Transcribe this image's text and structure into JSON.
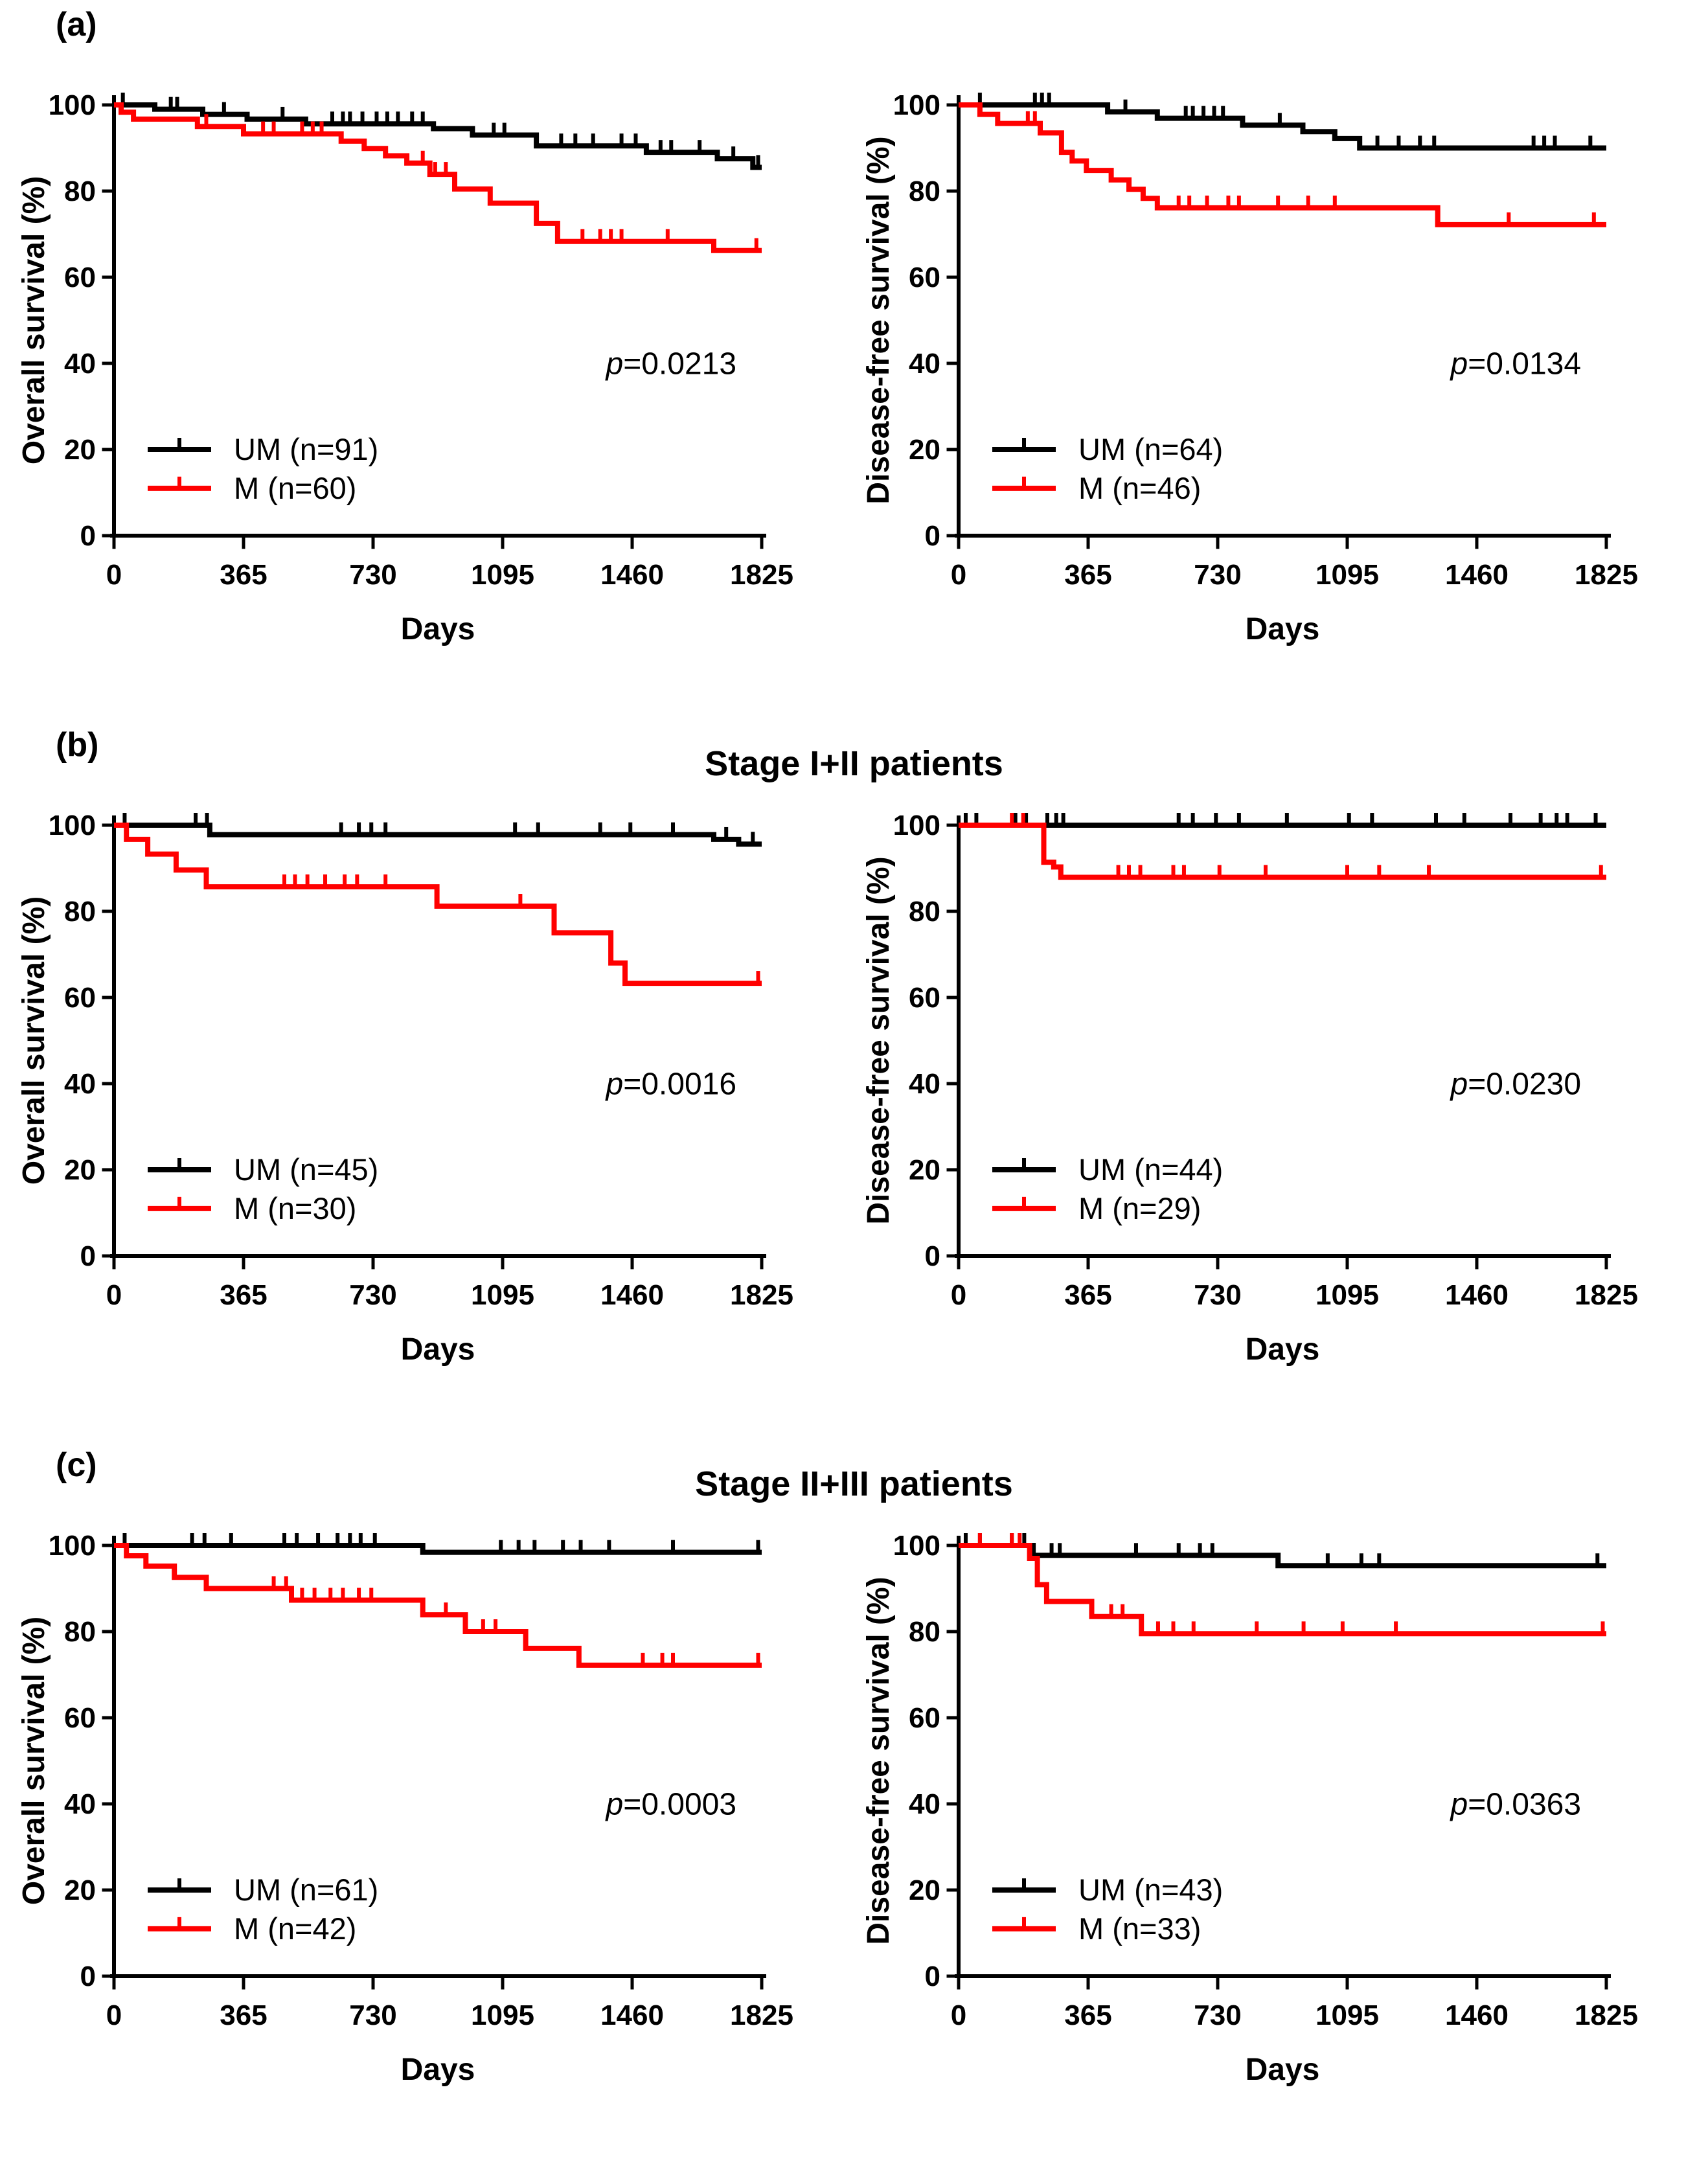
{
  "figure": {
    "panels": [
      {
        "label": "(a)",
        "title": "",
        "plot_indexes": [
          0,
          1
        ]
      },
      {
        "label": "(b)",
        "title": "Stage I+II patients",
        "plot_indexes": [
          2,
          3
        ]
      },
      {
        "label": "(c)",
        "title": "Stage II+III patients",
        "plot_indexes": [
          4,
          5
        ]
      }
    ],
    "colors": {
      "um": "#000000",
      "m": "#ff0000"
    }
  },
  "chart_data": [
    {
      "type": "line",
      "subtype": "kaplan-meier-step",
      "panel": "a",
      "position": "left",
      "title": "",
      "xlabel": "Days",
      "ylabel": "Overall survival (%)",
      "xlim": [
        0,
        1825
      ],
      "ylim": [
        0,
        100
      ],
      "xticks": [
        0,
        365,
        730,
        1095,
        1460,
        1825
      ],
      "yticks": [
        0,
        20,
        40,
        60,
        80,
        100
      ],
      "grid": false,
      "legend_position": "lower-left",
      "p_label": "=0.0213",
      "p_symbol": "p",
      "series": [
        {
          "name": "UM (n=91)",
          "color": "#000000",
          "steps": [
            [
              0,
              100
            ],
            [
              115,
              99
            ],
            [
              250,
              97.8
            ],
            [
              375,
              96.7
            ],
            [
              540,
              95.6
            ],
            [
              900,
              94.5
            ],
            [
              1010,
              93
            ],
            [
              1190,
              90.5
            ],
            [
              1500,
              89
            ],
            [
              1700,
              87.5
            ],
            [
              1800,
              85.5
            ]
          ],
          "censors": [
            25,
            160,
            178,
            310,
            475,
            615,
            645,
            665,
            700,
            740,
            770,
            800,
            840,
            870,
            1070,
            1100,
            1260,
            1300,
            1350,
            1430,
            1470,
            1540,
            1570,
            1650,
            1745,
            1815
          ]
        },
        {
          "name": "M (n=60)",
          "color": "#ff0000",
          "steps": [
            [
              0,
              100
            ],
            [
              20,
              98.3
            ],
            [
              55,
              96.7
            ],
            [
              235,
              95
            ],
            [
              365,
              93.3
            ],
            [
              640,
              91.6
            ],
            [
              705,
              89.9
            ],
            [
              765,
              88.2
            ],
            [
              825,
              86.5
            ],
            [
              890,
              83.9
            ],
            [
              960,
              80.5
            ],
            [
              1060,
              77.2
            ],
            [
              1190,
              72.5
            ],
            [
              1250,
              68.3
            ],
            [
              1690,
              66.2
            ]
          ],
          "censors": [
            260,
            420,
            450,
            530,
            560,
            585,
            870,
            905,
            935,
            1320,
            1370,
            1400,
            1430,
            1560,
            1810
          ]
        }
      ]
    },
    {
      "type": "line",
      "subtype": "kaplan-meier-step",
      "panel": "a",
      "position": "right",
      "title": "",
      "xlabel": "Days",
      "ylabel": "Disease-free survival (%)",
      "xlim": [
        0,
        1825
      ],
      "ylim": [
        0,
        100
      ],
      "xticks": [
        0,
        365,
        730,
        1095,
        1460,
        1825
      ],
      "yticks": [
        0,
        20,
        40,
        60,
        80,
        100
      ],
      "grid": false,
      "legend_position": "lower-left",
      "p_label": "=0.0134",
      "p_symbol": "p",
      "series": [
        {
          "name": "UM (n=64)",
          "color": "#000000",
          "steps": [
            [
              0,
              100
            ],
            [
              420,
              98.4
            ],
            [
              560,
              96.9
            ],
            [
              800,
              95.3
            ],
            [
              970,
              93.8
            ],
            [
              1060,
              92.2
            ],
            [
              1130,
              90
            ]
          ],
          "censors": [
            60,
            215,
            235,
            255,
            470,
            640,
            660,
            690,
            720,
            745,
            905,
            1180,
            1240,
            1300,
            1340,
            1620,
            1650,
            1680,
            1780
          ]
        },
        {
          "name": "M (n=46)",
          "color": "#ff0000",
          "steps": [
            [
              0,
              100
            ],
            [
              60,
              97.8
            ],
            [
              110,
              95.7
            ],
            [
              230,
              93.5
            ],
            [
              290,
              89
            ],
            [
              320,
              87
            ],
            [
              360,
              84.8
            ],
            [
              430,
              82.6
            ],
            [
              480,
              80.4
            ],
            [
              520,
              78.3
            ],
            [
              560,
              76.1
            ],
            [
              1350,
              72.2
            ]
          ],
          "censors": [
            195,
            215,
            620,
            650,
            700,
            760,
            790,
            900,
            985,
            1060,
            1550,
            1790
          ]
        }
      ]
    },
    {
      "type": "line",
      "subtype": "kaplan-meier-step",
      "panel": "b",
      "position": "left",
      "title": "Stage I+II patients",
      "xlabel": "Days",
      "ylabel": "Overall survival (%)",
      "xlim": [
        0,
        1825
      ],
      "ylim": [
        0,
        100
      ],
      "xticks": [
        0,
        365,
        730,
        1095,
        1460,
        1825
      ],
      "yticks": [
        0,
        20,
        40,
        60,
        80,
        100
      ],
      "grid": false,
      "legend_position": "lower-left",
      "p_label": "=0.0016",
      "p_symbol": "p",
      "series": [
        {
          "name": "UM (n=45)",
          "color": "#000000",
          "steps": [
            [
              0,
              100
            ],
            [
              270,
              97.8
            ],
            [
              1690,
              96.7
            ],
            [
              1760,
              95.6
            ]
          ],
          "censors": [
            30,
            230,
            262,
            640,
            690,
            725,
            765,
            1130,
            1195,
            1370,
            1455,
            1575,
            1725,
            1800
          ]
        },
        {
          "name": "M (n=30)",
          "color": "#ff0000",
          "steps": [
            [
              0,
              100
            ],
            [
              35,
              96.7
            ],
            [
              95,
              93.3
            ],
            [
              175,
              89.6
            ],
            [
              260,
              85.7
            ],
            [
              910,
              81.2
            ],
            [
              1240,
              75
            ],
            [
              1400,
              68
            ],
            [
              1440,
              63.3
            ]
          ],
          "censors": [
            480,
            510,
            545,
            595,
            650,
            685,
            765,
            1145,
            1815
          ]
        }
      ]
    },
    {
      "type": "line",
      "subtype": "kaplan-meier-step",
      "panel": "b",
      "position": "right",
      "title": "Stage I+II patients",
      "xlabel": "Days",
      "ylabel": "Disease-free survival (%)",
      "xlim": [
        0,
        1825
      ],
      "ylim": [
        0,
        100
      ],
      "xticks": [
        0,
        365,
        730,
        1095,
        1460,
        1825
      ],
      "yticks": [
        0,
        20,
        40,
        60,
        80,
        100
      ],
      "grid": false,
      "legend_position": "lower-left",
      "p_label": "=0.0230",
      "p_symbol": "p",
      "series": [
        {
          "name": "UM (n=44)",
          "color": "#000000",
          "steps": [
            [
              0,
              100
            ]
          ],
          "censors": [
            20,
            50,
            160,
            190,
            250,
            275,
            295,
            620,
            660,
            725,
            790,
            925,
            1100,
            1165,
            1345,
            1425,
            1555,
            1640,
            1685,
            1715,
            1795
          ]
        },
        {
          "name": "M (n=29)",
          "color": "#ff0000",
          "steps": [
            [
              0,
              100
            ],
            [
              240,
              91.4
            ],
            [
              268,
              90.3
            ],
            [
              288,
              87.9
            ]
          ],
          "censors": [
            150,
            182,
            450,
            480,
            512,
            605,
            635,
            735,
            865,
            1095,
            1185,
            1325,
            1810
          ]
        }
      ]
    },
    {
      "type": "line",
      "subtype": "kaplan-meier-step",
      "panel": "c",
      "position": "left",
      "title": "Stage II+III patients",
      "xlabel": "Days",
      "ylabel": "Overall survival (%)",
      "xlim": [
        0,
        1825
      ],
      "ylim": [
        0,
        100
      ],
      "xticks": [
        0,
        365,
        730,
        1095,
        1460,
        1825
      ],
      "yticks": [
        0,
        20,
        40,
        60,
        80,
        100
      ],
      "grid": false,
      "legend_position": "lower-left",
      "p_label": "=0.0003",
      "p_symbol": "p",
      "series": [
        {
          "name": "UM (n=61)",
          "color": "#000000",
          "steps": [
            [
              0,
              100
            ],
            [
              870,
              98.4
            ]
          ],
          "censors": [
            30,
            220,
            255,
            330,
            480,
            515,
            575,
            630,
            665,
            695,
            735,
            1090,
            1140,
            1185,
            1265,
            1315,
            1395,
            1575,
            1815
          ]
        },
        {
          "name": "M (n=42)",
          "color": "#ff0000",
          "steps": [
            [
              0,
              100
            ],
            [
              35,
              97.6
            ],
            [
              90,
              95.2
            ],
            [
              170,
              92.6
            ],
            [
              260,
              90
            ],
            [
              500,
              87.3
            ],
            [
              870,
              83.9
            ],
            [
              990,
              80
            ],
            [
              1160,
              76.1
            ],
            [
              1310,
              72.2
            ]
          ],
          "censors": [
            450,
            485,
            530,
            565,
            610,
            645,
            690,
            725,
            935,
            1040,
            1075,
            1490,
            1545,
            1575,
            1815
          ]
        }
      ]
    },
    {
      "type": "line",
      "subtype": "kaplan-meier-step",
      "panel": "c",
      "position": "right",
      "title": "Stage II+III patients",
      "xlabel": "Days",
      "ylabel": "Disease-free survival (%)",
      "xlim": [
        0,
        1825
      ],
      "ylim": [
        0,
        100
      ],
      "xticks": [
        0,
        365,
        730,
        1095,
        1460,
        1825
      ],
      "yticks": [
        0,
        20,
        40,
        60,
        80,
        100
      ],
      "grid": false,
      "legend_position": "lower-left",
      "p_label": "=0.0363",
      "p_symbol": "p",
      "series": [
        {
          "name": "UM (n=43)",
          "color": "#000000",
          "steps": [
            [
              0,
              100
            ],
            [
              210,
              97.7
            ],
            [
              900,
              95.3
            ]
          ],
          "censors": [
            20,
            60,
            150,
            185,
            262,
            285,
            500,
            620,
            680,
            715,
            1040,
            1135,
            1185,
            1800
          ]
        },
        {
          "name": "M (n=33)",
          "color": "#ff0000",
          "steps": [
            [
              0,
              100
            ],
            [
              200,
              97
            ],
            [
              222,
              90.9
            ],
            [
              248,
              87
            ],
            [
              375,
              83.5
            ],
            [
              515,
              79.5
            ]
          ],
          "censors": [
            60,
            150,
            172,
            430,
            462,
            562,
            605,
            662,
            840,
            972,
            1082,
            1232,
            1815
          ]
        }
      ]
    }
  ]
}
